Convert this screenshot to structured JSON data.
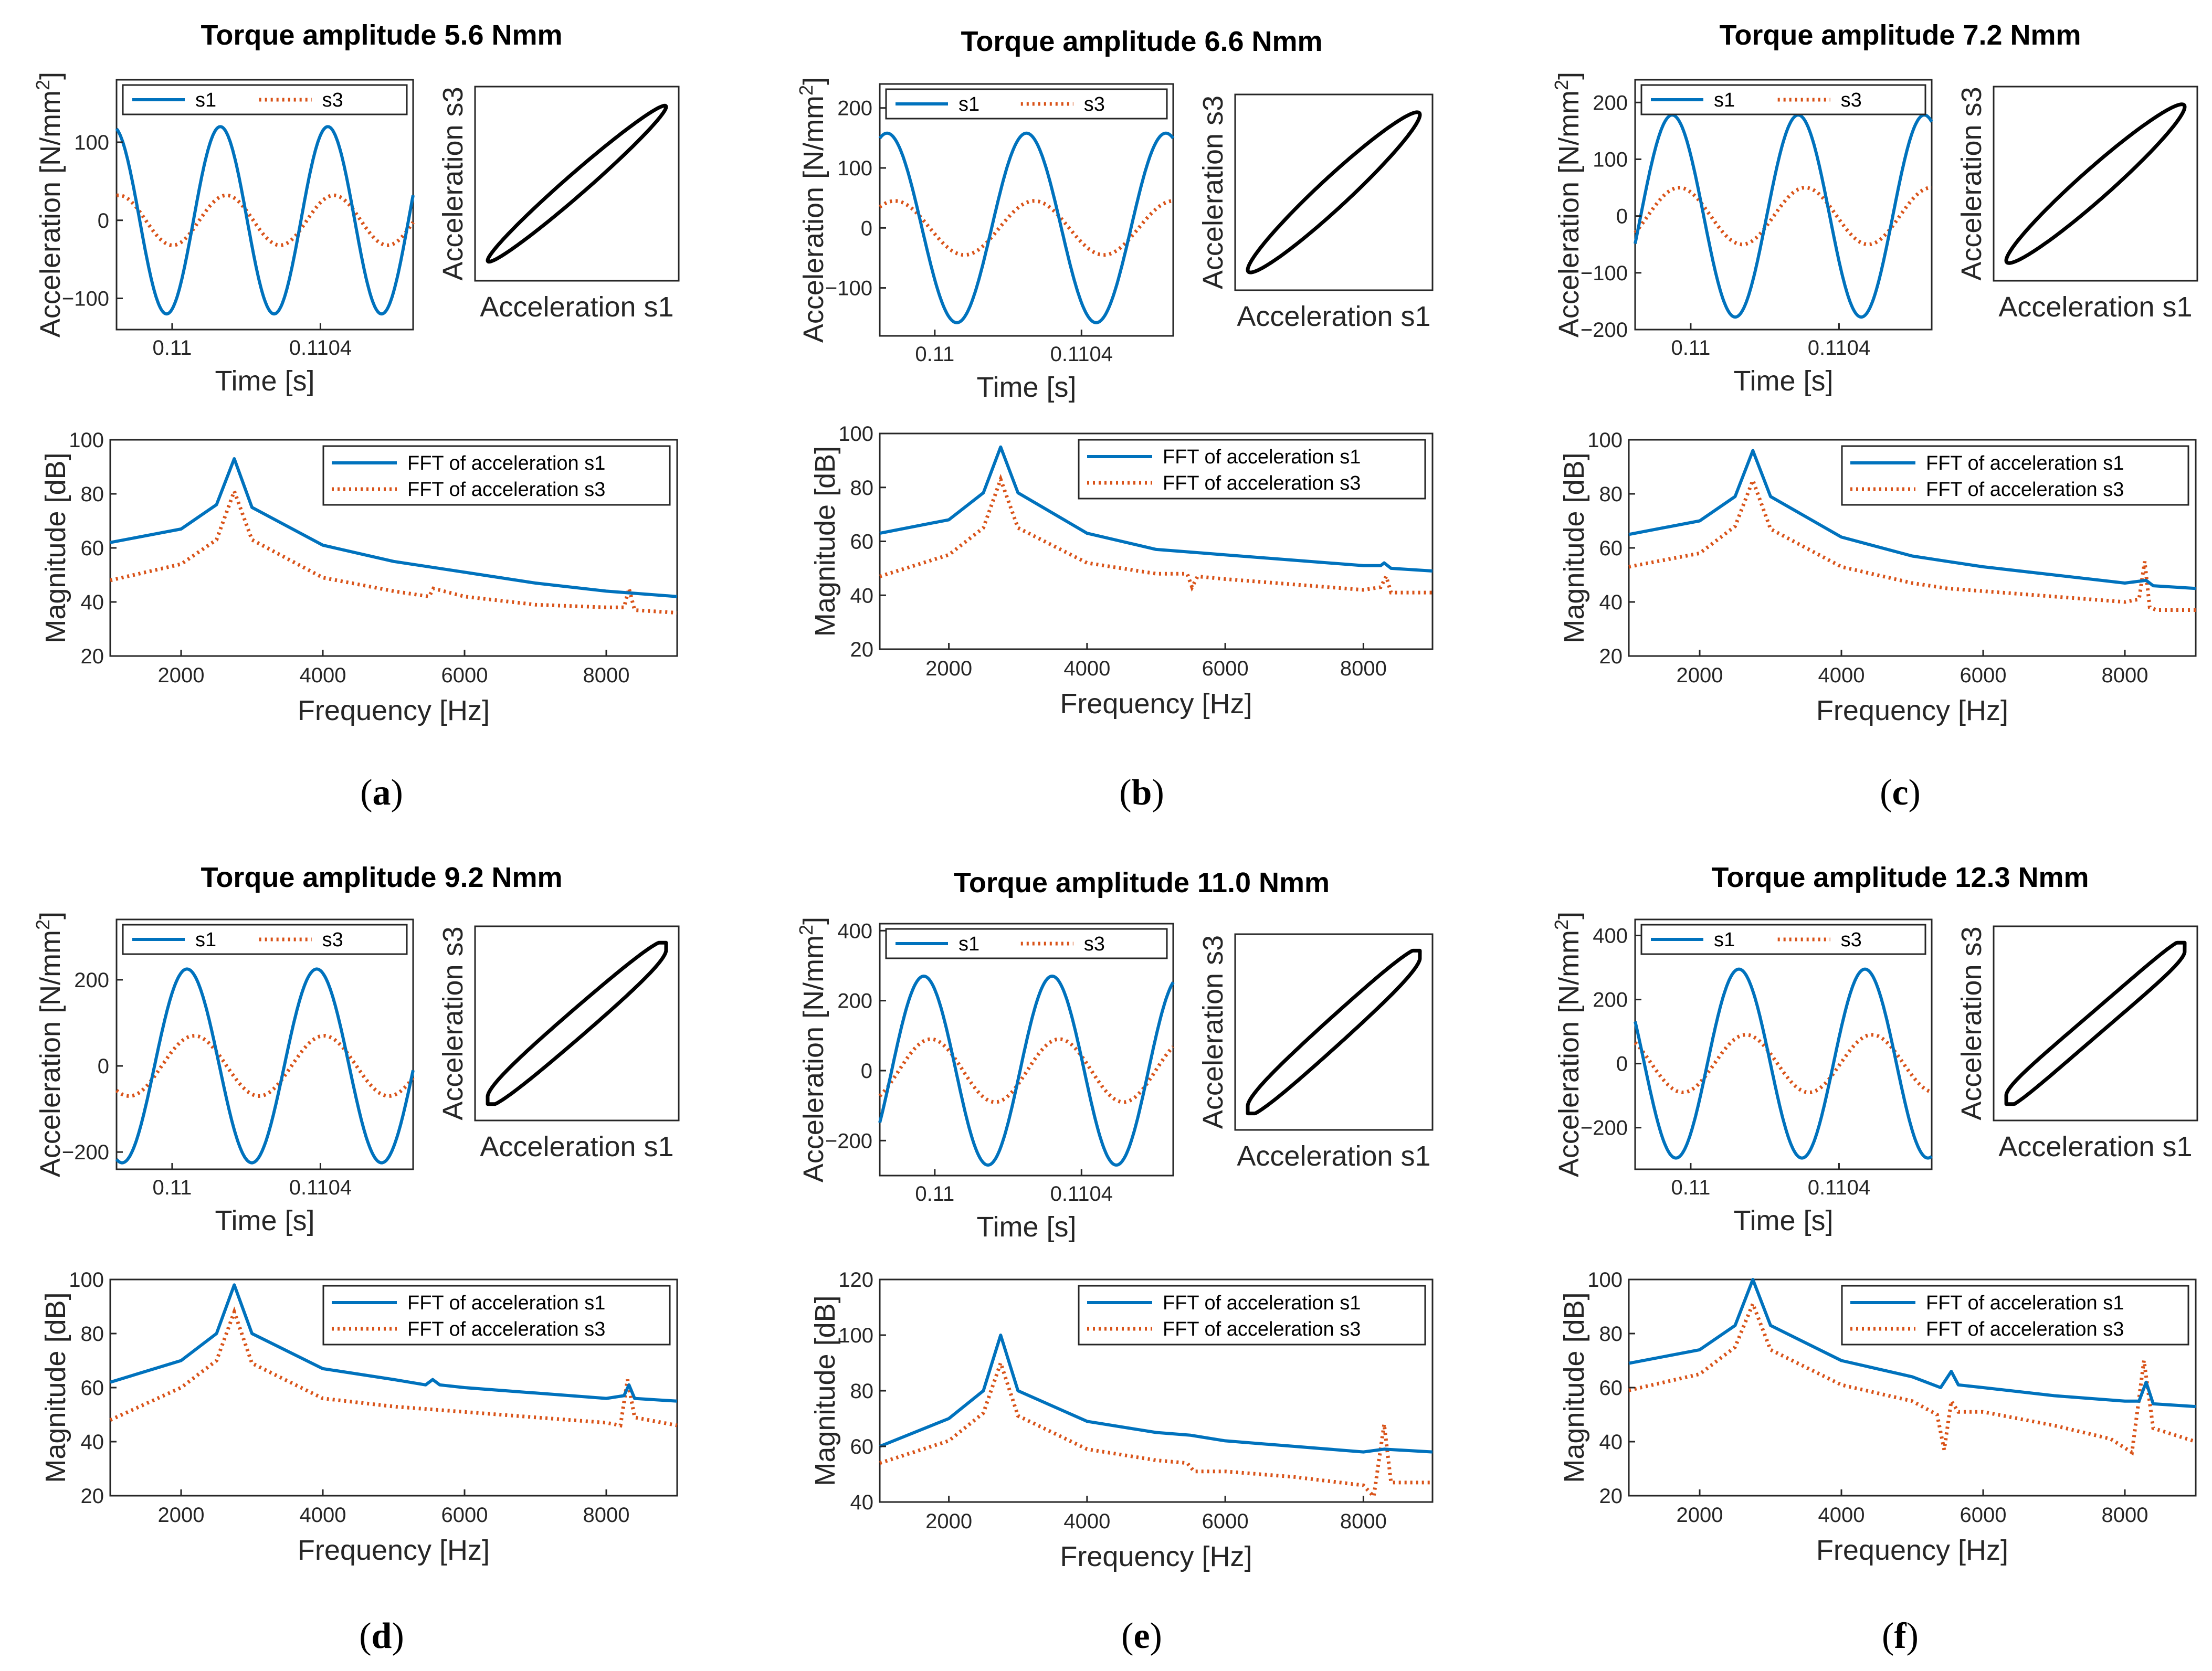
{
  "figure": {
    "colors": {
      "s1": "#0072BD",
      "s3": "#D95319",
      "phase_loop": "#000000",
      "axes": "#262626"
    },
    "panels": [
      {
        "letter": "a",
        "title": "Torque amplitude 5.6 Nmm",
        "torque_nmm": 5.6
      },
      {
        "letter": "b",
        "title": "Torque amplitude 6.6 Nmm",
        "torque_nmm": 6.6
      },
      {
        "letter": "c",
        "title": "Torque amplitude 7.2 Nmm",
        "torque_nmm": 7.2
      },
      {
        "letter": "d",
        "title": "Torque amplitude 9.2 Nmm",
        "torque_nmm": 9.2
      },
      {
        "letter": "e",
        "title": "Torque amplitude 11.0 Nmm",
        "torque_nmm": 11.0
      },
      {
        "letter": "f",
        "title": "Torque amplitude 12.3 Nmm",
        "torque_nmm": 12.3
      }
    ]
  },
  "chart_data": [
    {
      "panel": "a",
      "type": "line",
      "subplot": "time",
      "title": "Torque amplitude 5.6 Nmm",
      "xlabel": "Time [s]",
      "ylabel": "Acceleration [N/mm²]",
      "xlim": [
        0.10985,
        0.11065
      ],
      "ylim": [
        -140,
        180
      ],
      "xticks": [
        0.11,
        0.1104
      ],
      "xticklabels": [
        "0.11",
        "0.1104"
      ],
      "yticks": [
        -100,
        0,
        100
      ],
      "legend": [
        "s1",
        "s3"
      ],
      "series": [
        {
          "name": "s1",
          "amplitude": 120,
          "peaks_at": [
            0.11013,
            0.11042
          ]
        },
        {
          "name": "s3",
          "amplitude": 32
        }
      ]
    },
    {
      "panel": "a",
      "type": "line",
      "subplot": "phase",
      "xlabel": "Acceleration s1",
      "ylabel": "Acceleration s3",
      "shape": "narrow ellipse"
    },
    {
      "panel": "a",
      "type": "line",
      "subplot": "fft",
      "xlabel": "Frequency [Hz]",
      "ylabel": "Magnitude [dB]",
      "xlim": [
        1000,
        9000
      ],
      "ylim": [
        20,
        100
      ],
      "xticks": [
        2000,
        4000,
        6000,
        8000
      ],
      "yticks": [
        20,
        40,
        60,
        80,
        100
      ],
      "legend": [
        "FFT of acceleration s1",
        "FFT of acceleration s3"
      ],
      "series": [
        {
          "name": "FFT of acceleration s1",
          "x": [
            1000,
            2000,
            2500,
            2750,
            3000,
            4000,
            5000,
            6000,
            7000,
            8000,
            9000
          ],
          "y": [
            62,
            67,
            76,
            93,
            75,
            61,
            55,
            51,
            47,
            44,
            42
          ]
        },
        {
          "name": "FFT of acceleration s3",
          "x": [
            1000,
            2000,
            2500,
            2750,
            3000,
            4000,
            5000,
            5500,
            5560,
            6000,
            7000,
            8000,
            8250,
            8320,
            8400,
            9000
          ],
          "y": [
            48,
            54,
            63,
            81,
            63,
            49,
            44,
            42,
            45,
            42,
            39,
            38,
            38,
            45,
            37,
            36
          ]
        }
      ]
    },
    {
      "panel": "b",
      "type": "line",
      "subplot": "time",
      "title": "Torque amplitude 6.6 Nmm",
      "xlabel": "Time [s]",
      "ylabel": "Acceleration [N/mm²]",
      "xlim": [
        0.10985,
        0.11065
      ],
      "ylim": [
        -180,
        240
      ],
      "xticks": [
        0.11,
        0.1104
      ],
      "xticklabels": [
        "0.11",
        "0.1104"
      ],
      "yticks": [
        -100,
        0,
        100,
        200
      ],
      "legend": [
        "s1",
        "s3"
      ],
      "series": [
        {
          "name": "s1",
          "amplitude": 158,
          "peaks_at": [
            0.10987,
            0.11025,
            0.1106
          ]
        },
        {
          "name": "s3",
          "amplitude": 45
        }
      ]
    },
    {
      "panel": "b",
      "type": "line",
      "subplot": "phase",
      "xlabel": "Acceleration s1",
      "ylabel": "Acceleration s3",
      "shape": "ellipse"
    },
    {
      "panel": "b",
      "type": "line",
      "subplot": "fft",
      "xlabel": "Frequency [Hz]",
      "ylabel": "Magnitude [dB]",
      "xlim": [
        1000,
        9000
      ],
      "ylim": [
        20,
        100
      ],
      "xticks": [
        2000,
        4000,
        6000,
        8000
      ],
      "yticks": [
        20,
        40,
        60,
        80,
        100
      ],
      "legend": [
        "FFT of acceleration s1",
        "FFT of acceleration s3"
      ],
      "series": [
        {
          "name": "FFT of acceleration s1",
          "x": [
            1000,
            2000,
            2500,
            2750,
            3000,
            4000,
            5000,
            5500,
            6000,
            7000,
            8000,
            8250,
            8300,
            8400,
            9000
          ],
          "y": [
            63,
            68,
            78,
            95,
            78,
            63,
            57,
            56,
            55,
            53,
            51,
            51,
            52,
            50,
            49
          ]
        },
        {
          "name": "FFT of acceleration s3",
          "x": [
            1000,
            2000,
            2500,
            2750,
            3000,
            4000,
            5000,
            5450,
            5520,
            5600,
            6000,
            7000,
            8000,
            8250,
            8330,
            8400,
            9000
          ],
          "y": [
            47,
            55,
            65,
            83,
            65,
            52,
            48,
            48,
            43,
            47,
            46,
            44,
            42,
            43,
            47,
            41,
            41
          ]
        }
      ]
    },
    {
      "panel": "c",
      "type": "line",
      "subplot": "time",
      "title": "Torque amplitude 7.2 Nmm",
      "xlabel": "Time [s]",
      "ylabel": "Acceleration [N/mm²]",
      "xlim": [
        0.10985,
        0.11065
      ],
      "ylim": [
        -200,
        240
      ],
      "xticks": [
        0.11,
        0.1104
      ],
      "xticklabels": [
        "0.11",
        "0.1104"
      ],
      "yticks": [
        -200,
        -100,
        0,
        100,
        200
      ],
      "legend": [
        "s1",
        "s3"
      ],
      "series": [
        {
          "name": "s1",
          "amplitude": 178,
          "peaks_at": [
            0.10995,
            0.11029,
            0.11062
          ]
        },
        {
          "name": "s3",
          "amplitude": 50
        }
      ]
    },
    {
      "panel": "c",
      "type": "line",
      "subplot": "phase",
      "xlabel": "Acceleration s1",
      "ylabel": "Acceleration s3",
      "shape": "ellipse"
    },
    {
      "panel": "c",
      "type": "line",
      "subplot": "fft",
      "xlabel": "Frequency [Hz]",
      "ylabel": "Magnitude [dB]",
      "xlim": [
        1000,
        9000
      ],
      "ylim": [
        20,
        100
      ],
      "xticks": [
        2000,
        4000,
        6000,
        8000
      ],
      "yticks": [
        20,
        40,
        60,
        80,
        100
      ],
      "legend": [
        "FFT of acceleration s1",
        "FFT of acceleration s3"
      ],
      "series": [
        {
          "name": "FFT of acceleration s1",
          "x": [
            1000,
            2000,
            2500,
            2750,
            3000,
            4000,
            5000,
            5500,
            6000,
            7000,
            8000,
            8300,
            8400,
            9000
          ],
          "y": [
            65,
            70,
            79,
            96,
            79,
            64,
            57,
            55,
            53,
            50,
            47,
            48,
            46,
            45
          ]
        },
        {
          "name": "FFT of acceleration s3",
          "x": [
            1000,
            2000,
            2500,
            2750,
            3000,
            4000,
            5000,
            5500,
            6000,
            7000,
            8000,
            8200,
            8280,
            8350,
            8450,
            9000
          ],
          "y": [
            53,
            58,
            68,
            85,
            67,
            53,
            47,
            45,
            44,
            42,
            40,
            41,
            55,
            38,
            37,
            37
          ]
        }
      ]
    },
    {
      "panel": "d",
      "type": "line",
      "subplot": "time",
      "title": "Torque amplitude 9.2 Nmm",
      "xlabel": "Time [s]",
      "ylabel": "Acceleration [N/mm²]",
      "xlim": [
        0.10985,
        0.11065
      ],
      "ylim": [
        -240,
        340
      ],
      "xticks": [
        0.11,
        0.1104
      ],
      "xticklabels": [
        "0.11",
        "0.1104"
      ],
      "yticks": [
        -200,
        0,
        200
      ],
      "legend": [
        "s1",
        "s3"
      ],
      "series": [
        {
          "name": "s1",
          "amplitude": 225,
          "peaks_at": [
            0.11004,
            0.11039
          ]
        },
        {
          "name": "s3",
          "amplitude": 70
        }
      ]
    },
    {
      "panel": "d",
      "type": "line",
      "subplot": "phase",
      "xlabel": "Acceleration s1",
      "ylabel": "Acceleration s3",
      "shape": "distorted ellipse"
    },
    {
      "panel": "d",
      "type": "line",
      "subplot": "fft",
      "xlabel": "Frequency [Hz]",
      "ylabel": "Magnitude [dB]",
      "xlim": [
        1000,
        9000
      ],
      "ylim": [
        20,
        100
      ],
      "xticks": [
        2000,
        4000,
        6000,
        8000
      ],
      "yticks": [
        20,
        40,
        60,
        80,
        100
      ],
      "legend": [
        "FFT of acceleration s1",
        "FFT of acceleration s3"
      ],
      "series": [
        {
          "name": "FFT of acceleration s1",
          "x": [
            1000,
            2000,
            2500,
            2750,
            3000,
            4000,
            5000,
            5450,
            5550,
            5650,
            6000,
            7000,
            8000,
            8250,
            8320,
            8400,
            9000
          ],
          "y": [
            62,
            70,
            80,
            98,
            80,
            67,
            63,
            61,
            63,
            61,
            60,
            58,
            56,
            57,
            61,
            56,
            55
          ]
        },
        {
          "name": "FFT of acceleration s3",
          "x": [
            1000,
            2000,
            2500,
            2750,
            3000,
            4000,
            5000,
            5500,
            6000,
            7000,
            8000,
            8200,
            8300,
            8400,
            9000
          ],
          "y": [
            48,
            60,
            70,
            88,
            69,
            56,
            53,
            52,
            51,
            49,
            47,
            46,
            63,
            49,
            46
          ]
        }
      ]
    },
    {
      "panel": "e",
      "type": "line",
      "subplot": "time",
      "title": "Torque amplitude 11.0 Nmm",
      "xlabel": "Time [s]",
      "ylabel": "Acceleration [N/mm²]",
      "xlim": [
        0.10985,
        0.11065
      ],
      "ylim": [
        -300,
        420
      ],
      "xticks": [
        0.11,
        0.1104
      ],
      "xticklabels": [
        "0.11",
        "0.1104"
      ],
      "yticks": [
        -200,
        0,
        200,
        400
      ],
      "legend": [
        "s1",
        "s3"
      ],
      "series": [
        {
          "name": "s1",
          "amplitude": 270,
          "peaks_at": [
            0.10997,
            0.11032,
            0.11065
          ]
        },
        {
          "name": "s3",
          "amplitude": 90
        }
      ]
    },
    {
      "panel": "e",
      "type": "line",
      "subplot": "phase",
      "xlabel": "Acceleration s1",
      "ylabel": "Acceleration s3",
      "shape": "distorted ellipse"
    },
    {
      "panel": "e",
      "type": "line",
      "subplot": "fft",
      "xlabel": "Frequency [Hz]",
      "ylabel": "Magnitude [dB]",
      "xlim": [
        1000,
        9000
      ],
      "ylim": [
        40,
        120
      ],
      "xticks": [
        2000,
        4000,
        6000,
        8000
      ],
      "yticks": [
        40,
        60,
        80,
        100,
        120
      ],
      "legend": [
        "FFT of acceleration s1",
        "FFT of acceleration s3"
      ],
      "series": [
        {
          "name": "FFT of acceleration s1",
          "x": [
            1000,
            2000,
            2500,
            2750,
            3000,
            4000,
            5000,
            5500,
            6000,
            7000,
            8000,
            8300,
            9000
          ],
          "y": [
            60,
            70,
            80,
            100,
            80,
            69,
            65,
            64,
            62,
            60,
            58,
            59,
            58
          ]
        },
        {
          "name": "FFT of acceleration s3",
          "x": [
            1000,
            2000,
            2500,
            2750,
            3000,
            4000,
            5000,
            5450,
            5550,
            6000,
            7000,
            8000,
            8150,
            8300,
            8400,
            9000
          ],
          "y": [
            54,
            62,
            72,
            90,
            71,
            59,
            55,
            54,
            51,
            51,
            49,
            46,
            42,
            68,
            47,
            47
          ]
        }
      ]
    },
    {
      "panel": "f",
      "type": "line",
      "subplot": "time",
      "title": "Torque amplitude 12.3 Nmm",
      "xlabel": "Time [s]",
      "ylabel": "Acceleration [N/mm²]",
      "xlim": [
        0.10985,
        0.11065
      ],
      "ylim": [
        -330,
        450
      ],
      "xticks": [
        0.11,
        0.1104
      ],
      "xticklabels": [
        "0.11",
        "0.1104"
      ],
      "yticks": [
        -200,
        0,
        200,
        400
      ],
      "legend": [
        "s1",
        "s3"
      ],
      "series": [
        {
          "name": "s1",
          "amplitude": 295,
          "peaks_at": [
            0.11013,
            0.11047
          ]
        },
        {
          "name": "s3",
          "amplitude": 90
        }
      ]
    },
    {
      "panel": "f",
      "type": "line",
      "subplot": "phase",
      "xlabel": "Acceleration s1",
      "ylabel": "Acceleration s3",
      "shape": "distorted ellipse"
    },
    {
      "panel": "f",
      "type": "line",
      "subplot": "fft",
      "xlabel": "Frequency [Hz]",
      "ylabel": "Magnitude [dB]",
      "xlim": [
        1000,
        9000
      ],
      "ylim": [
        20,
        100
      ],
      "xticks": [
        2000,
        4000,
        6000,
        8000
      ],
      "yticks": [
        20,
        40,
        60,
        80,
        100
      ],
      "legend": [
        "FFT of acceleration s1",
        "FFT of acceleration s3"
      ],
      "series": [
        {
          "name": "FFT of acceleration s1",
          "x": [
            1000,
            2000,
            2500,
            2750,
            3000,
            4000,
            5000,
            5400,
            5550,
            5650,
            6000,
            7000,
            8000,
            8200,
            8300,
            8400,
            9000
          ],
          "y": [
            69,
            74,
            83,
            100,
            83,
            70,
            64,
            60,
            66,
            61,
            60,
            57,
            55,
            55,
            62,
            54,
            53
          ]
        },
        {
          "name": "FFT of acceleration s3",
          "x": [
            1000,
            2000,
            2500,
            2750,
            3000,
            4000,
            5000,
            5350,
            5450,
            5550,
            5650,
            6000,
            7000,
            7800,
            8100,
            8270,
            8400,
            9000
          ],
          "y": [
            59,
            65,
            75,
            91,
            74,
            61,
            55,
            50,
            37,
            55,
            51,
            51,
            46,
            41,
            36,
            70,
            45,
            40
          ]
        }
      ]
    }
  ]
}
